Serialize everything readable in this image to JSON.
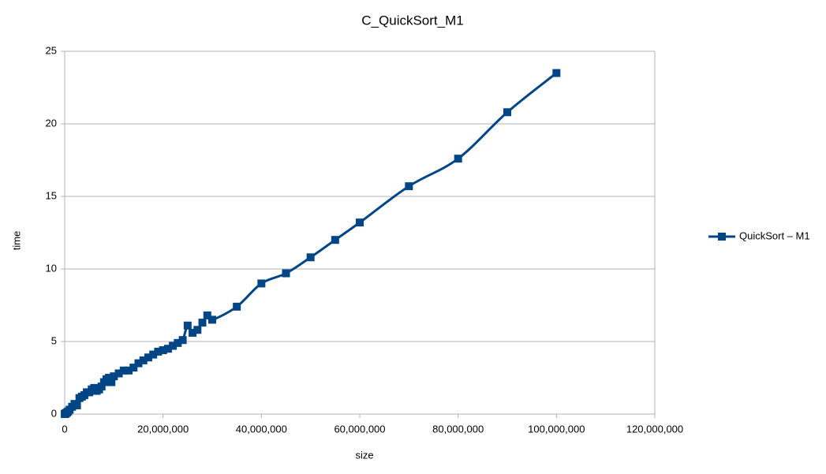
{
  "chart_data": {
    "type": "line",
    "title": "C_QuickSort_M1",
    "xlabel": "size",
    "ylabel": "time",
    "x": [
      10000,
      100000,
      200000,
      300000,
      500000,
      700000,
      1000000,
      1500000,
      2000000,
      2500000,
      3000000,
      3500000,
      4000000,
      4500000,
      5000000,
      5500000,
      6000000,
      6500000,
      7000000,
      7500000,
      8000000,
      8500000,
      9000000,
      9500000,
      10000000,
      11000000,
      12000000,
      13000000,
      14000000,
      15000000,
      16000000,
      17000000,
      18000000,
      19000000,
      20000000,
      21000000,
      22000000,
      23000000,
      24000000,
      25000000,
      26000000,
      27000000,
      28000000,
      29000000,
      30000000,
      35000000,
      40000000,
      45000000,
      50000000,
      55000000,
      60000000,
      70000000,
      80000000,
      90000000,
      100000000
    ],
    "series": [
      {
        "name": "QuickSort – M1",
        "color": "#004586",
        "values": [
          0.0,
          0.02,
          0.05,
          0.07,
          0.12,
          0.18,
          0.3,
          0.5,
          0.7,
          0.6,
          1.1,
          1.2,
          1.3,
          1.5,
          1.5,
          1.7,
          1.8,
          1.6,
          1.7,
          1.9,
          2.2,
          2.4,
          2.5,
          2.2,
          2.6,
          2.8,
          3.0,
          3.0,
          3.2,
          3.5,
          3.7,
          3.9,
          4.1,
          4.3,
          4.4,
          4.5,
          4.7,
          4.9,
          5.1,
          6.1,
          5.6,
          5.8,
          6.3,
          6.8,
          6.5,
          7.4,
          9.0,
          9.7,
          10.8,
          12.0,
          13.2,
          15.7,
          17.6,
          20.8,
          23.5
        ]
      }
    ],
    "xlim": [
      0,
      120000000
    ],
    "xticks": [
      {
        "value": 0,
        "label": "0"
      },
      {
        "value": 20000000,
        "label": "20,000,000"
      },
      {
        "value": 40000000,
        "label": "40,000,000"
      },
      {
        "value": 60000000,
        "label": "60,000,000"
      },
      {
        "value": 80000000,
        "label": "80,000,000"
      },
      {
        "value": 100000000,
        "label": "100,000,000"
      },
      {
        "value": 120000000,
        "label": "120,000,000"
      }
    ],
    "ylim": [
      0,
      25
    ],
    "yticks": [
      0,
      5,
      10,
      15,
      20,
      25
    ],
    "grid": true,
    "legend": "right"
  }
}
